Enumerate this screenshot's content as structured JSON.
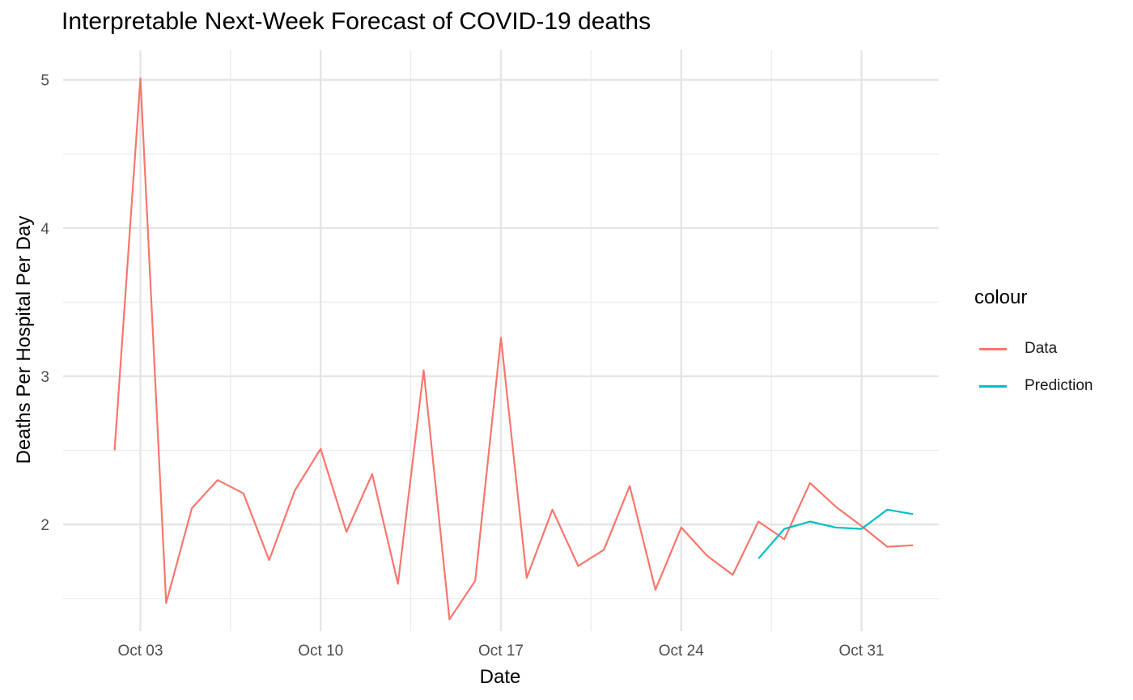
{
  "chart_data": {
    "type": "line",
    "title": "Interpretable Next-Week Forecast of COVID-19 deaths",
    "xlabel": "Date",
    "ylabel": "Deaths Per Hospital Per Day",
    "x_tick_labels": [
      "Oct 03",
      "Oct 10",
      "Oct 17",
      "Oct 24",
      "Oct 31"
    ],
    "y_tick_labels": [
      "2",
      "3",
      "4",
      "5"
    ],
    "y_ticks": [
      2,
      3,
      4,
      5
    ],
    "x_ticks": [
      "2020-10-03",
      "2020-10-10",
      "2020-10-17",
      "2020-10-24",
      "2020-10-31"
    ],
    "xlim": [
      "2020-09-30",
      "2020-11-03"
    ],
    "ylim": [
      1.28,
      5.2
    ],
    "grid": true,
    "legend": {
      "title": "colour",
      "position": "right"
    },
    "series": [
      {
        "name": "Data",
        "color": "#F8766D",
        "x": [
          "2020-10-02",
          "2020-10-03",
          "2020-10-04",
          "2020-10-05",
          "2020-10-06",
          "2020-10-07",
          "2020-10-08",
          "2020-10-09",
          "2020-10-10",
          "2020-10-11",
          "2020-10-12",
          "2020-10-13",
          "2020-10-14",
          "2020-10-15",
          "2020-10-16",
          "2020-10-17",
          "2020-10-18",
          "2020-10-19",
          "2020-10-20",
          "2020-10-21",
          "2020-10-22",
          "2020-10-23",
          "2020-10-24",
          "2020-10-25",
          "2020-10-26",
          "2020-10-27",
          "2020-10-28",
          "2020-10-29",
          "2020-10-30",
          "2020-10-31",
          "2020-11-01",
          "2020-11-02"
        ],
        "values": [
          2.5,
          5.01,
          1.47,
          2.11,
          2.3,
          2.21,
          1.76,
          2.23,
          2.51,
          1.95,
          2.34,
          1.6,
          3.04,
          1.36,
          1.62,
          3.26,
          1.64,
          2.1,
          1.72,
          1.83,
          2.26,
          1.56,
          1.98,
          1.79,
          1.66,
          2.02,
          1.9,
          2.28,
          2.12,
          1.99,
          1.85,
          1.86
        ]
      },
      {
        "name": "Prediction",
        "color": "#00BFC4",
        "x": [
          "2020-10-27",
          "2020-10-28",
          "2020-10-29",
          "2020-10-30",
          "2020-10-31",
          "2020-11-01",
          "2020-11-02"
        ],
        "values": [
          1.77,
          1.97,
          2.02,
          1.98,
          1.97,
          2.1,
          2.07
        ]
      }
    ]
  }
}
